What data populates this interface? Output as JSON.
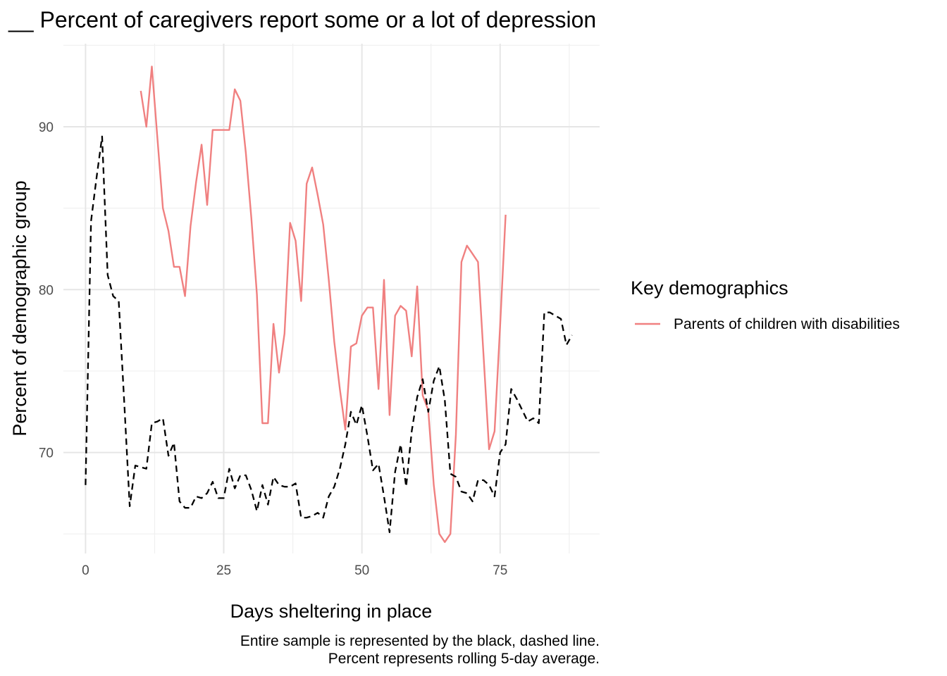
{
  "chart_data": {
    "type": "line",
    "title": "__ Percent of caregivers report some or a lot of depression",
    "xlabel": "Days sheltering in place",
    "ylabel": "Percent of demographic group",
    "xlim": [
      -4,
      93
    ],
    "ylim": [
      63.8,
      95.1
    ],
    "x_ticks": [
      0,
      25,
      50,
      75
    ],
    "y_ticks": [
      70,
      80,
      90
    ],
    "grid": true,
    "legend": {
      "title": "Key demographics",
      "position": "right",
      "entries": [
        {
          "label": "Parents of children with disabilities",
          "color": "#F08080"
        }
      ]
    },
    "caption": [
      "Entire sample is represented by the black, dashed line.",
      "Percent represents rolling 5-day average."
    ],
    "series": [
      {
        "name": "Parents of children with disabilities",
        "color": "#F08080",
        "dash": "none",
        "x": [
          10,
          11,
          12,
          13,
          14,
          15,
          16,
          17,
          18,
          19,
          20,
          21,
          22,
          23,
          24,
          25,
          26,
          27,
          28,
          29,
          30,
          31,
          32,
          33,
          34,
          35,
          36,
          37,
          38,
          39,
          40,
          41,
          42,
          43,
          44,
          45,
          46,
          47,
          48,
          49,
          50,
          51,
          52,
          53,
          54,
          55,
          56,
          57,
          58,
          59,
          60,
          61,
          62,
          63,
          64,
          65,
          66,
          67,
          68,
          69,
          70,
          71,
          72,
          73,
          74,
          75,
          76
        ],
        "y": [
          92.2,
          90.0,
          93.7,
          89.3,
          85.0,
          83.6,
          81.4,
          81.4,
          79.6,
          83.9,
          86.6,
          88.9,
          85.2,
          89.8,
          89.8,
          89.8,
          89.8,
          92.3,
          91.6,
          88.4,
          84.4,
          79.7,
          71.8,
          71.8,
          77.9,
          74.9,
          77.3,
          84.1,
          83.0,
          79.3,
          86.5,
          87.5,
          85.8,
          84.0,
          80.6,
          76.8,
          73.9,
          71.4,
          76.5,
          76.7,
          78.4,
          78.9,
          78.9,
          73.9,
          80.6,
          72.3,
          78.4,
          79.0,
          78.7,
          75.9,
          80.2,
          73.5,
          72.6,
          68.0,
          65.0,
          64.5,
          65.0,
          71.1,
          81.7,
          82.7,
          82.2,
          81.7,
          76.0,
          70.2,
          71.3,
          77.8,
          84.6
        ]
      },
      {
        "name": "",
        "color": "#000000",
        "dash": "dashed",
        "x": [
          0,
          1,
          2,
          3,
          4,
          5,
          6,
          7,
          8,
          9,
          10,
          11,
          12,
          13,
          14,
          15,
          16,
          17,
          18,
          19,
          20,
          21,
          22,
          23,
          24,
          25,
          26,
          27,
          28,
          29,
          30,
          31,
          32,
          33,
          34,
          35,
          36,
          37,
          38,
          39,
          40,
          41,
          42,
          43,
          44,
          45,
          46,
          47,
          48,
          49,
          50,
          51,
          52,
          53,
          54,
          55,
          56,
          57,
          58,
          59,
          60,
          61,
          62,
          63,
          64,
          65,
          66,
          67,
          68,
          69,
          70,
          71,
          72,
          73,
          74,
          75,
          76,
          77,
          78,
          79,
          80,
          81,
          82,
          83,
          84,
          85,
          86,
          87,
          88
        ],
        "y": [
          68.0,
          84.2,
          86.9,
          89.4,
          80.9,
          79.6,
          79.3,
          73.1,
          66.7,
          69.2,
          69.1,
          69.0,
          71.8,
          71.9,
          72.1,
          69.8,
          70.6,
          67.0,
          66.6,
          66.6,
          67.3,
          67.2,
          67.5,
          68.2,
          67.2,
          67.2,
          69.0,
          67.8,
          68.6,
          68.6,
          67.7,
          66.4,
          68.0,
          66.8,
          68.5,
          68.0,
          67.9,
          67.9,
          68.1,
          66.0,
          66.0,
          66.1,
          66.3,
          66.0,
          67.3,
          67.9,
          69.0,
          70.5,
          72.5,
          71.7,
          72.9,
          71.0,
          68.9,
          69.3,
          67.3,
          65.1,
          68.8,
          70.5,
          67.9,
          71.3,
          73.4,
          74.5,
          72.5,
          74.4,
          75.3,
          73.2,
          68.7,
          68.5,
          67.6,
          67.5,
          67.0,
          68.3,
          68.3,
          68.0,
          67.3,
          70.0,
          70.5,
          73.9,
          73.3,
          72.6,
          71.9,
          72.1,
          71.8,
          78.6,
          78.6,
          78.4,
          78.2,
          76.6,
          77.2
        ]
      }
    ]
  }
}
